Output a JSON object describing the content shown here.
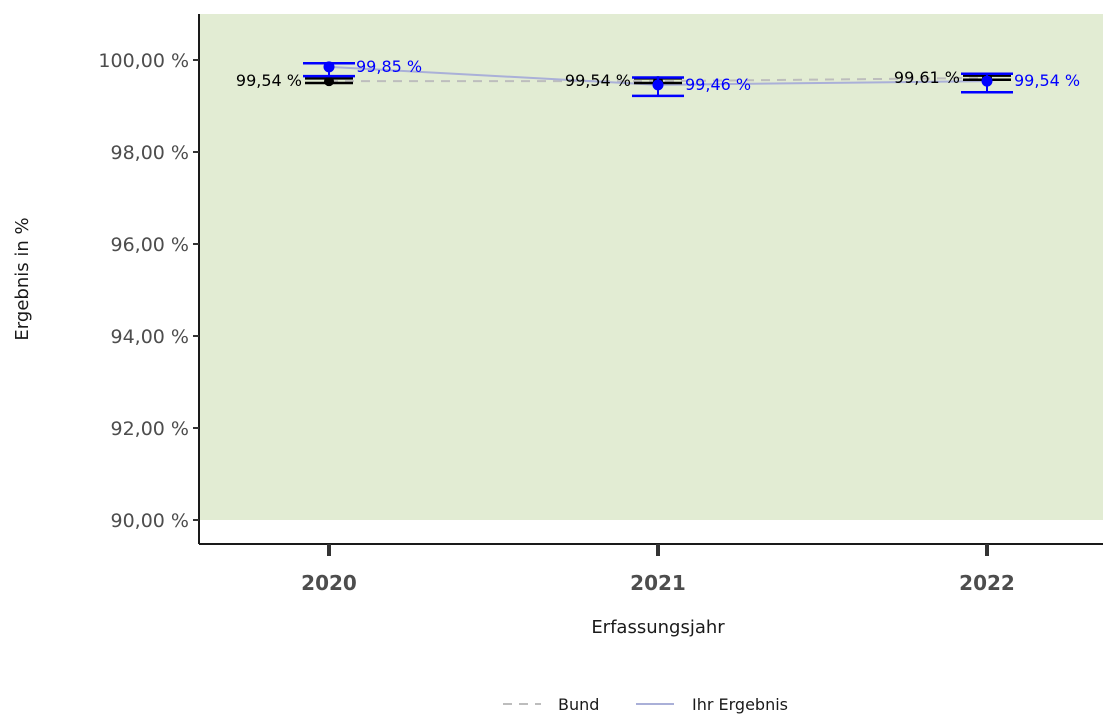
{
  "chart_data": {
    "type": "line",
    "title": "",
    "xlabel": "Erfassungsjahr",
    "ylabel": "Ergebnis in %",
    "ylim": [
      90,
      101
    ],
    "y_ticks": [
      "90,00 %",
      "92,00 %",
      "94,00 %",
      "96,00 %",
      "98,00 %",
      "100,00 %"
    ],
    "y_tick_values": [
      90,
      92,
      94,
      96,
      98,
      100
    ],
    "reference_area": {
      "from": 90,
      "to": 101,
      "color": "#e2ecd3"
    },
    "categories": [
      "2020",
      "2021",
      "2022"
    ],
    "series": [
      {
        "name": "Bund",
        "style": "dashed",
        "line_color": "#bdbdbd",
        "point_color": "#000000",
        "values": [
          99.54,
          99.54,
          99.61
        ],
        "labels": [
          "99,54 %",
          "99,54 %",
          "99,61 %"
        ],
        "ci": [
          [
            99.5,
            99.6
          ],
          [
            99.5,
            99.6
          ],
          [
            99.57,
            99.66
          ]
        ]
      },
      {
        "name": "Ihr Ergebnis",
        "style": "solid",
        "line_color": "#aab0d8",
        "point_color": "#0000ff",
        "values": [
          99.85,
          99.46,
          99.54
        ],
        "labels": [
          "99,85 %",
          "99,46 %",
          "99,54 %"
        ],
        "ci": [
          [
            99.65,
            99.93
          ],
          [
            99.22,
            99.62
          ],
          [
            99.3,
            99.7
          ]
        ]
      }
    ],
    "legend": {
      "position": "bottom",
      "items": [
        "Bund",
        "Ihr Ergebnis"
      ]
    },
    "grid": false
  }
}
